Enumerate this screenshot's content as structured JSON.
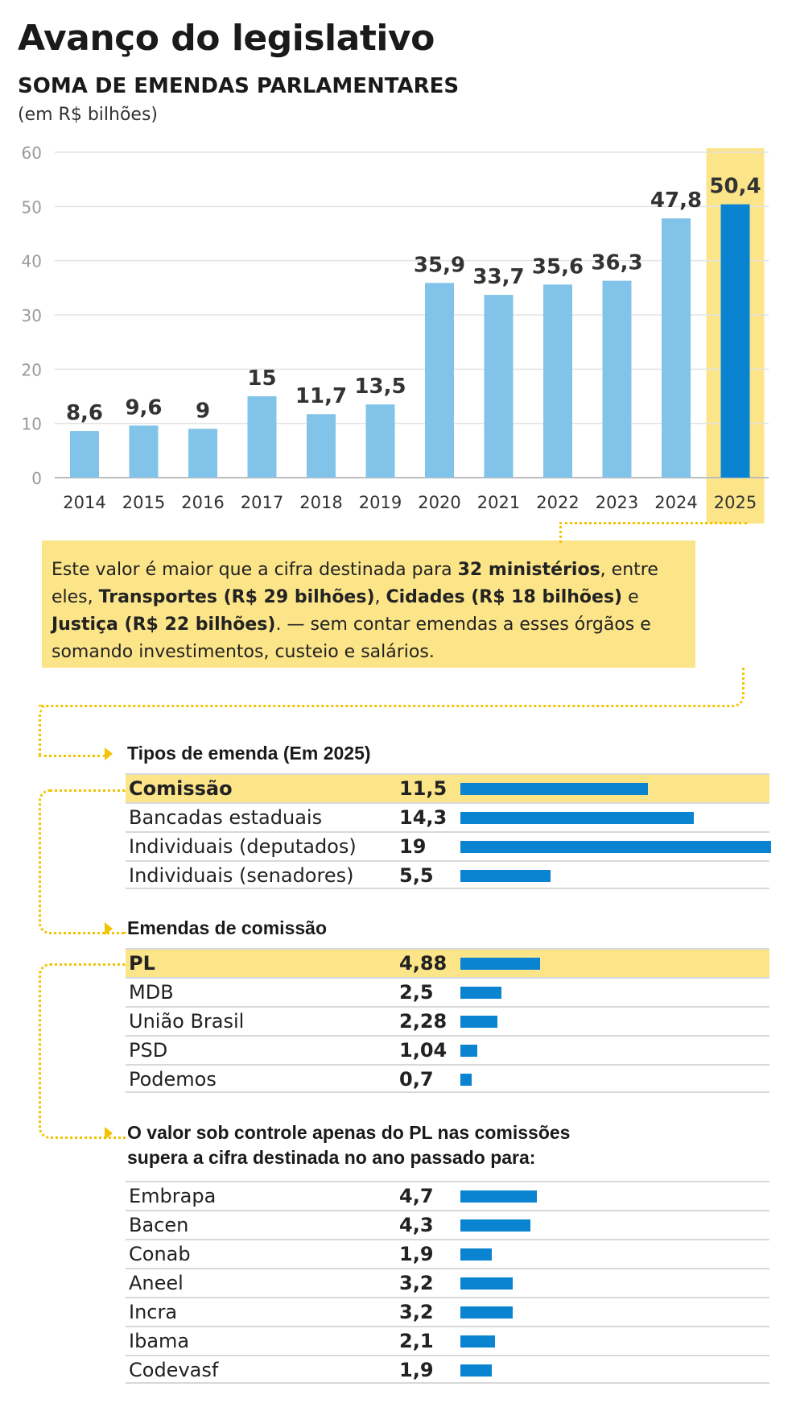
{
  "title": "Avanço do legislativo",
  "subtitle": "SOMA DE EMENDAS PARLAMENTARES",
  "unit": "(em R$ bilhões)",
  "colors": {
    "bar_light": "#82c4e9",
    "bar_dark": "#0a83d0",
    "highlight": "#fce589",
    "dots": "#f2c400"
  },
  "chart_data": [
    {
      "type": "bar",
      "title": "SOMA DE EMENDAS PARLAMENTARES",
      "ylabel": "(em R$ bilhões)",
      "categories": [
        "2014",
        "2015",
        "2016",
        "2017",
        "2018",
        "2019",
        "2020",
        "2021",
        "2022",
        "2023",
        "2024",
        "2025"
      ],
      "values": [
        8.6,
        9.6,
        9,
        15,
        11.7,
        13.5,
        35.9,
        33.7,
        35.6,
        36.3,
        47.8,
        50.4
      ],
      "labels": [
        "8,6",
        "9,6",
        "9",
        "15",
        "11,7",
        "13,5",
        "35,9",
        "33,7",
        "35,6",
        "36,3",
        "47,8",
        "50,4"
      ],
      "ylim": [
        0,
        60
      ],
      "yticks": [
        0,
        10,
        20,
        30,
        40,
        50,
        60
      ],
      "highlight": "2025",
      "grid": true
    },
    {
      "type": "bar",
      "title": "Tipos de emenda (Em 2025)",
      "categories": [
        "Comissão",
        "Bancadas estaduais",
        "Individuais (deputados)",
        "Individuais (senadores)"
      ],
      "values": [
        11.5,
        14.3,
        19,
        5.5
      ],
      "labels": [
        "11,5",
        "14,3",
        "19",
        "5,5"
      ],
      "highlight": "Comissão"
    },
    {
      "type": "bar",
      "title": "Emendas de comissão",
      "categories": [
        "PL",
        "MDB",
        "União Brasil",
        "PSD",
        "Podemos"
      ],
      "values": [
        4.88,
        2.5,
        2.28,
        1.04,
        0.7
      ],
      "labels": [
        "4,88",
        "2,5",
        "2,28",
        "1,04",
        "0,7"
      ],
      "highlight": "PL"
    },
    {
      "type": "bar",
      "title": "O valor sob controle apenas do PL nas comissões supera a cifra destinada no ano passado para:",
      "categories": [
        "Embrapa",
        "Bacen",
        "Conab",
        "Aneel",
        "Incra",
        "Ibama",
        "Codevasf"
      ],
      "values": [
        4.7,
        4.3,
        1.9,
        3.2,
        3.2,
        2.1,
        1.9
      ],
      "labels": [
        "4,7",
        "4,3",
        "1,9",
        "3,2",
        "3,2",
        "2,1",
        "1,9"
      ]
    }
  ],
  "callout": {
    "t1": "Este valor é maior que a cifra destinada para ",
    "b1": "32 ministérios",
    "t2": ", entre eles, ",
    "b2": "Transportes (R$ 29 bilhões)",
    "t3": ", ",
    "b3": "Cidades (R$ 18 bilhões)",
    "t4": " e ",
    "b4": "Justiça (R$ 22 bilhões)",
    "t5": ". — sem contar emendas a esses órgãos e somando investimentos, custeio e salários."
  },
  "sections": {
    "tipos_title": "Tipos de emenda (Em 2025)",
    "comissao_title": "Emendas de comissão",
    "pl_title_line1": "O valor sob controle apenas do PL nas comissões",
    "pl_title_line2": "supera a cifra destinada no ano passado para:"
  }
}
